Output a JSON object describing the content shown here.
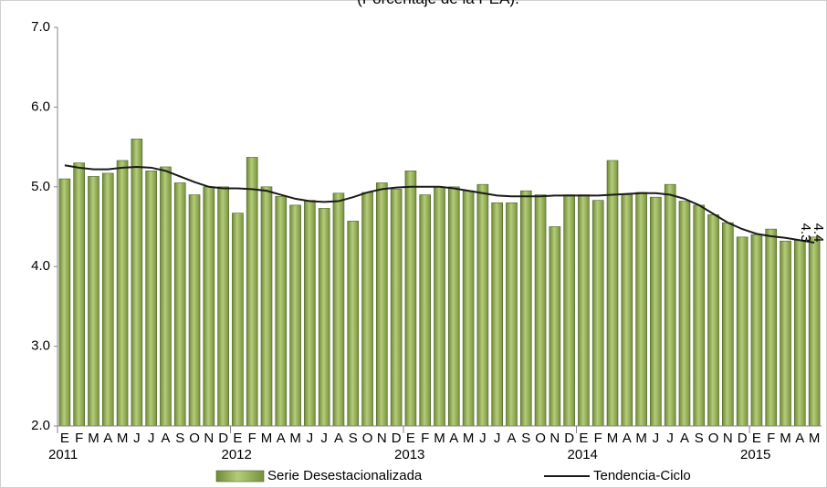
{
  "chart_data": {
    "type": "bar-line",
    "subtitle": "(Porcentaje de la PEA).",
    "categories": [
      "E",
      "F",
      "M",
      "A",
      "M",
      "J",
      "J",
      "A",
      "S",
      "O",
      "N",
      "D",
      "E",
      "F",
      "M",
      "A",
      "M",
      "J",
      "J",
      "A",
      "S",
      "O",
      "N",
      "D",
      "E",
      "F",
      "M",
      "A",
      "M",
      "J",
      "J",
      "A",
      "S",
      "O",
      "N",
      "D",
      "E",
      "F",
      "M",
      "A",
      "M",
      "J",
      "J",
      "A",
      "S",
      "O",
      "N",
      "D",
      "E",
      "F",
      "M",
      "A",
      "M"
    ],
    "year_labels": [
      "2011",
      "2012",
      "2013",
      "2014",
      "2015"
    ],
    "series": [
      {
        "name": "Serie Desestacionalizada",
        "color": "#9bbb59",
        "values": [
          5.1,
          5.3,
          5.13,
          5.17,
          5.33,
          5.6,
          5.2,
          5.25,
          5.05,
          4.9,
          5.0,
          5.0,
          4.67,
          5.37,
          5.0,
          4.88,
          4.77,
          4.83,
          4.73,
          4.92,
          4.57,
          4.93,
          5.05,
          4.97,
          5.2,
          4.9,
          5.0,
          5.0,
          4.95,
          5.03,
          4.8,
          4.8,
          4.95,
          4.9,
          4.5,
          4.9,
          4.9,
          4.83,
          5.33,
          4.9,
          4.93,
          4.87,
          5.03,
          4.82,
          4.77,
          4.65,
          4.55,
          4.37,
          4.4,
          4.47,
          4.32,
          4.33,
          4.37
        ],
        "value_labels": [
          null,
          null,
          null,
          null,
          null,
          null,
          null,
          null,
          null,
          null,
          null,
          null,
          null,
          null,
          null,
          null,
          null,
          null,
          null,
          null,
          null,
          null,
          null,
          null,
          null,
          null,
          null,
          null,
          null,
          null,
          null,
          null,
          null,
          null,
          null,
          null,
          null,
          null,
          null,
          null,
          null,
          null,
          null,
          null,
          null,
          null,
          null,
          null,
          null,
          null,
          null,
          null,
          "4.4"
        ]
      },
      {
        "name": "Tendencia-Ciclo",
        "color": "#1a1a1a",
        "values": [
          5.27,
          5.24,
          5.22,
          5.22,
          5.24,
          5.25,
          5.24,
          5.2,
          5.13,
          5.06,
          5.0,
          4.98,
          4.98,
          4.97,
          4.95,
          4.9,
          4.85,
          4.82,
          4.81,
          4.82,
          4.87,
          4.93,
          4.97,
          4.99,
          5.0,
          5.0,
          5.0,
          4.98,
          4.95,
          4.92,
          4.89,
          4.88,
          4.88,
          4.88,
          4.89,
          4.89,
          4.89,
          4.89,
          4.9,
          4.91,
          4.92,
          4.92,
          4.9,
          4.85,
          4.77,
          4.66,
          4.55,
          4.47,
          4.41,
          4.38,
          4.36,
          4.33,
          4.3
        ],
        "value_labels": [
          null,
          null,
          null,
          null,
          null,
          null,
          null,
          null,
          null,
          null,
          null,
          null,
          null,
          null,
          null,
          null,
          null,
          null,
          null,
          null,
          null,
          null,
          null,
          null,
          null,
          null,
          null,
          null,
          null,
          null,
          null,
          null,
          null,
          null,
          null,
          null,
          null,
          null,
          null,
          null,
          null,
          null,
          null,
          null,
          null,
          null,
          null,
          null,
          null,
          null,
          null,
          null,
          "4.3"
        ]
      }
    ],
    "ylim": [
      2,
      7
    ],
    "yticks": [
      {
        "value": 2,
        "label": "2.0"
      },
      {
        "value": 3,
        "label": "3.0"
      },
      {
        "value": 4,
        "label": "4.0"
      },
      {
        "value": 5,
        "label": "5.0"
      },
      {
        "value": 6,
        "label": "6.0"
      },
      {
        "value": 7,
        "label": "7.0"
      }
    ],
    "grid": false,
    "legend": "bottom"
  }
}
